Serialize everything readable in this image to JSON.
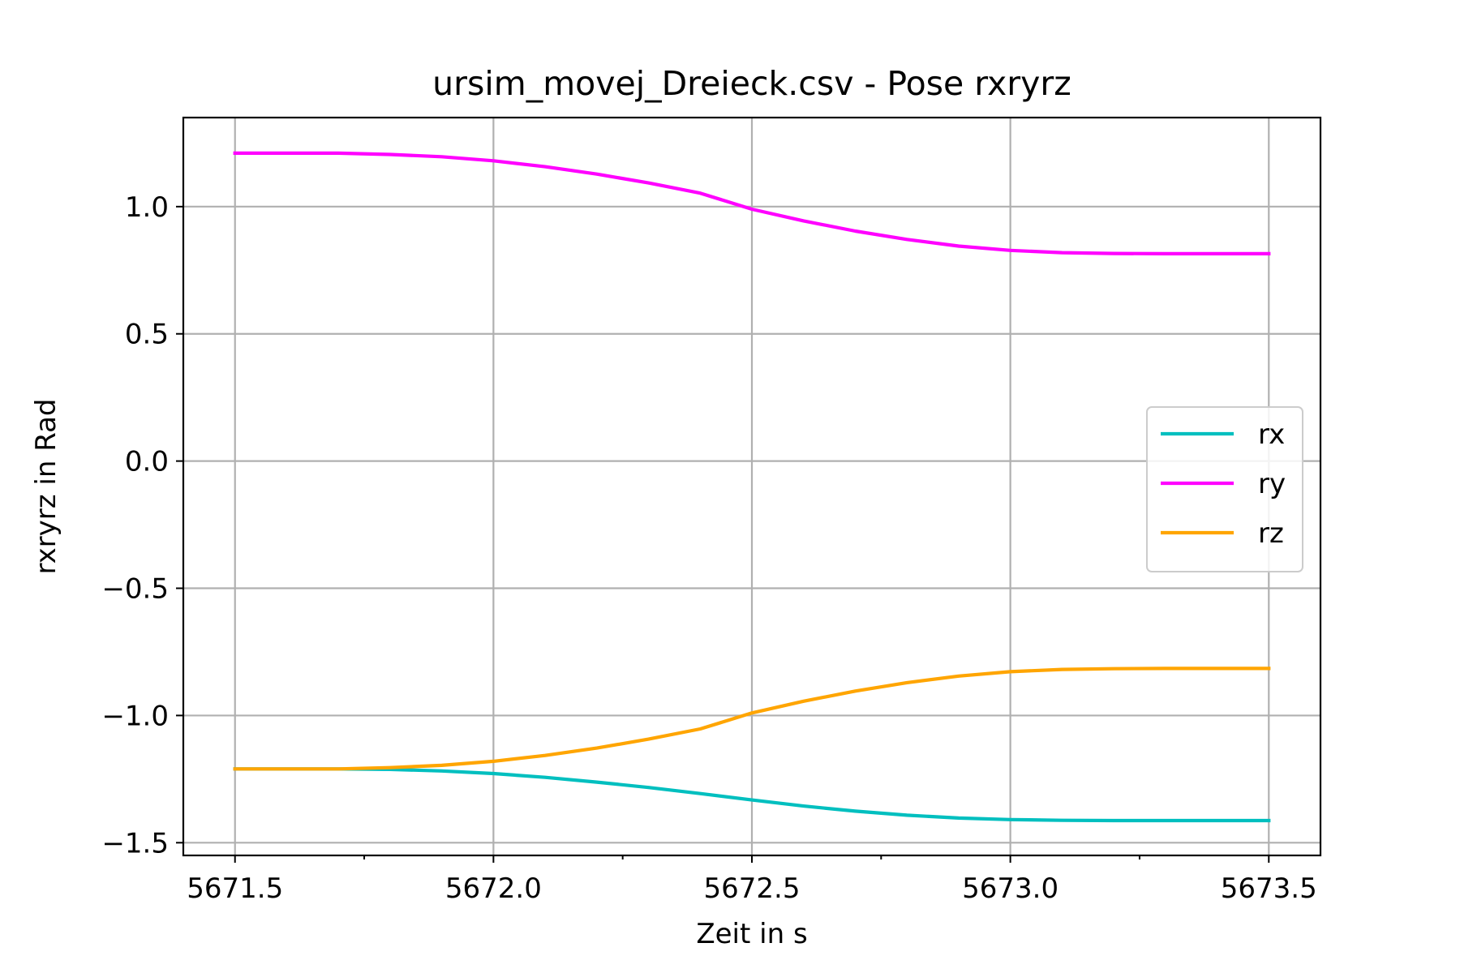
{
  "chart_data": {
    "type": "line",
    "title": "ursim_movej_Dreieck.csv - Pose rxryrz",
    "xlabel": "Zeit in s",
    "ylabel": "rxryrz in Rad",
    "xlim": [
      5671.4,
      5673.6
    ],
    "ylim": [
      -1.55,
      1.35
    ],
    "x_major_ticks": [
      5671.5,
      5672.0,
      5672.5,
      5673.0,
      5673.5
    ],
    "x_tick_labels": [
      "5671.5",
      "5672.0",
      "5672.5",
      "5673.0",
      "5673.5"
    ],
    "x_minor_ticks": [
      5671.75,
      5672.25,
      5672.75,
      5673.25
    ],
    "y_major_ticks": [
      -1.5,
      -1.0,
      -0.5,
      0.0,
      0.5,
      1.0
    ],
    "y_tick_labels": [
      "−1.5",
      "−1.0",
      "−0.5",
      "0.0",
      "0.5",
      "1.0"
    ],
    "grid": true,
    "legend_position": "center-right",
    "x": [
      5671.5,
      5671.6,
      5671.7,
      5671.8,
      5671.9,
      5672.0,
      5672.1,
      5672.2,
      5672.3,
      5672.4,
      5672.5,
      5672.6,
      5672.7,
      5672.8,
      5672.9,
      5673.0,
      5673.1,
      5673.2,
      5673.3,
      5673.4,
      5673.5
    ],
    "series": [
      {
        "name": "rx",
        "color": "#00bfbf",
        "values": [
          -1.21,
          -1.21,
          -1.21,
          -1.212,
          -1.218,
          -1.228,
          -1.243,
          -1.262,
          -1.283,
          -1.307,
          -1.332,
          -1.356,
          -1.376,
          -1.392,
          -1.403,
          -1.409,
          -1.412,
          -1.413,
          -1.413,
          -1.413,
          -1.413
        ]
      },
      {
        "name": "ry",
        "color": "#ff00ff",
        "values": [
          1.21,
          1.21,
          1.21,
          1.205,
          1.196,
          1.18,
          1.157,
          1.128,
          1.093,
          1.053,
          0.99,
          0.944,
          0.904,
          0.871,
          0.845,
          0.828,
          0.819,
          0.816,
          0.815,
          0.815,
          0.815
        ]
      },
      {
        "name": "rz",
        "color": "#ffa500",
        "values": [
          -1.21,
          -1.21,
          -1.21,
          -1.205,
          -1.196,
          -1.18,
          -1.157,
          -1.128,
          -1.093,
          -1.053,
          -0.99,
          -0.944,
          -0.904,
          -0.871,
          -0.845,
          -0.828,
          -0.819,
          -0.816,
          -0.815,
          -0.815,
          -0.815
        ]
      }
    ]
  }
}
